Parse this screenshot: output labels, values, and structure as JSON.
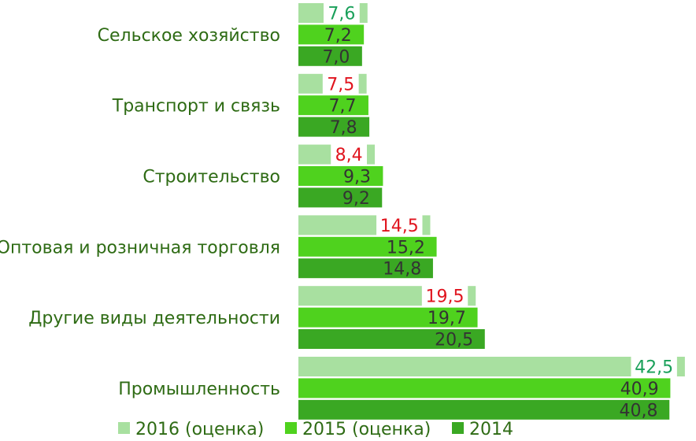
{
  "chart_data": {
    "type": "bar",
    "orientation": "horizontal",
    "title": "",
    "xlabel": "",
    "ylabel": "",
    "xlim": [
      0,
      43
    ],
    "grid": false,
    "legend_position": "bottom",
    "categories": [
      "Сельское хозяйство",
      "Транспорт и связь",
      "Строительство",
      "Оптовая и розничная торговля",
      "Другие виды деятельности",
      "Промышленность"
    ],
    "series": [
      {
        "name": "2016 (оценка)",
        "color": "#a8e0a0",
        "values": [
          7.6,
          7.5,
          8.4,
          14.5,
          19.5,
          42.5
        ],
        "labels": [
          "7,6",
          "7,5",
          "8,4",
          "14,5",
          "19,5",
          "42,5"
        ],
        "label_colors": [
          "#1aa05a",
          "#e0141e",
          "#e0141e",
          "#e0141e",
          "#e0141e",
          "#1aa05a"
        ]
      },
      {
        "name": "2015 (оценка)",
        "color": "#4fd21e",
        "values": [
          7.2,
          7.7,
          9.3,
          15.2,
          19.7,
          40.9
        ],
        "labels": [
          "7,2",
          "7,7",
          "9,3",
          "15,2",
          "19,7",
          "40,9"
        ]
      },
      {
        "name": "2014",
        "color": "#3aa823",
        "values": [
          7.0,
          7.8,
          9.2,
          14.8,
          20.5,
          40.8
        ],
        "labels": [
          "7,0",
          "7,8",
          "9,2",
          "14,8",
          "20,5",
          "40,8"
        ]
      }
    ],
    "colors": {
      "category_text": "#2e6b14",
      "value_text": "#333333"
    }
  }
}
